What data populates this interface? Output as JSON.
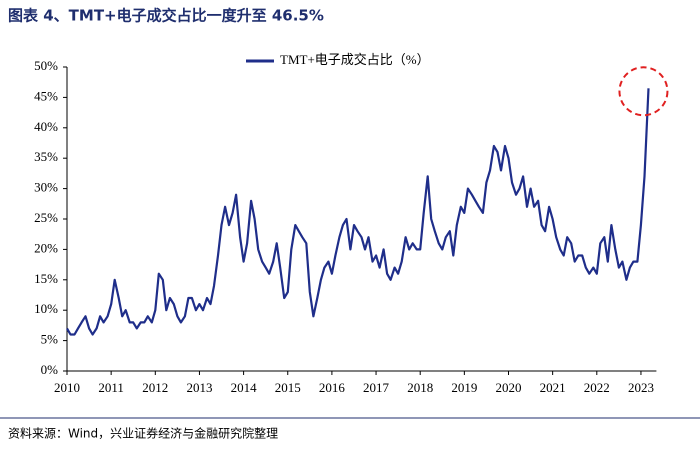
{
  "chart_data": {
    "type": "line",
    "title": "图表 4、TMT+电子成交占比一度升至 46.5%",
    "source": "资料来源：Wind，兴业证券经济与金融研究院整理",
    "xlim": [
      2010,
      2023.35
    ],
    "xticks": [
      2010,
      2011,
      2012,
      2013,
      2014,
      2015,
      2016,
      2017,
      2018,
      2019,
      2020,
      2021,
      2022,
      2023
    ],
    "ylim": [
      0,
      50
    ],
    "yticks": [
      {
        "value": 0,
        "label": "0%"
      },
      {
        "value": 5,
        "label": "5%"
      },
      {
        "value": 10,
        "label": "10%"
      },
      {
        "value": 15,
        "label": "15%"
      },
      {
        "value": 20,
        "label": "20%"
      },
      {
        "value": 25,
        "label": "25%"
      },
      {
        "value": 30,
        "label": "30%"
      },
      {
        "value": 35,
        "label": "35%"
      },
      {
        "value": 40,
        "label": "40%"
      },
      {
        "value": 45,
        "label": "45%"
      },
      {
        "value": 50,
        "label": "50%"
      }
    ],
    "legend": "top",
    "x": [
      2010,
      2010.08,
      2010.17,
      2010.25,
      2010.33,
      2010.42,
      2010.5,
      2010.58,
      2010.67,
      2010.75,
      2010.83,
      2010.92,
      2011,
      2011.08,
      2011.17,
      2011.25,
      2011.33,
      2011.42,
      2011.5,
      2011.58,
      2011.67,
      2011.75,
      2011.83,
      2011.92,
      2012,
      2012.08,
      2012.17,
      2012.25,
      2012.33,
      2012.42,
      2012.5,
      2012.58,
      2012.67,
      2012.75,
      2012.83,
      2012.92,
      2013,
      2013.08,
      2013.17,
      2013.25,
      2013.33,
      2013.42,
      2013.5,
      2013.58,
      2013.67,
      2013.75,
      2013.83,
      2013.92,
      2014,
      2014.08,
      2014.17,
      2014.25,
      2014.33,
      2014.42,
      2014.5,
      2014.58,
      2014.67,
      2014.75,
      2014.83,
      2014.92,
      2015,
      2015.08,
      2015.17,
      2015.25,
      2015.33,
      2015.42,
      2015.5,
      2015.58,
      2015.67,
      2015.75,
      2015.83,
      2015.92,
      2016,
      2016.08,
      2016.17,
      2016.25,
      2016.33,
      2016.42,
      2016.5,
      2016.58,
      2016.67,
      2016.75,
      2016.83,
      2016.92,
      2017,
      2017.08,
      2017.17,
      2017.25,
      2017.33,
      2017.42,
      2017.5,
      2017.58,
      2017.67,
      2017.75,
      2017.83,
      2017.92,
      2018,
      2018.08,
      2018.17,
      2018.25,
      2018.33,
      2018.42,
      2018.5,
      2018.58,
      2018.67,
      2018.75,
      2018.83,
      2018.92,
      2019,
      2019.08,
      2019.17,
      2019.25,
      2019.33,
      2019.42,
      2019.5,
      2019.58,
      2019.67,
      2019.75,
      2019.83,
      2019.92,
      2020,
      2020.08,
      2020.17,
      2020.25,
      2020.33,
      2020.42,
      2020.5,
      2020.58,
      2020.67,
      2020.75,
      2020.83,
      2020.92,
      2021,
      2021.08,
      2021.17,
      2021.25,
      2021.33,
      2021.42,
      2021.5,
      2021.58,
      2021.67,
      2021.75,
      2021.83,
      2021.92,
      2022,
      2022.08,
      2022.17,
      2022.25,
      2022.33,
      2022.42,
      2022.5,
      2022.58,
      2022.67,
      2022.75,
      2022.83,
      2022.92,
      2023,
      2023.08,
      2023.17
    ],
    "series": [
      {
        "name": "TMT+电子成交占比（%）",
        "color": "#1f2e8a",
        "values": [
          7,
          6,
          6,
          7,
          8,
          9,
          7,
          6,
          7,
          9,
          8,
          9,
          11,
          15,
          12,
          9,
          10,
          8,
          8,
          7,
          8,
          8,
          9,
          8,
          10,
          16,
          15,
          10,
          12,
          11,
          9,
          8,
          9,
          12,
          12,
          10,
          11,
          10,
          12,
          11,
          14,
          19,
          24,
          27,
          24,
          26,
          29,
          22,
          18,
          21,
          28,
          25,
          20,
          18,
          17,
          16,
          18,
          21,
          17,
          12,
          13,
          20,
          24,
          23,
          22,
          21,
          13,
          9,
          12,
          15,
          17,
          18,
          16,
          19,
          22,
          24,
          25,
          20,
          24,
          23,
          22,
          20,
          22,
          18,
          19,
          17,
          20,
          16,
          15,
          17,
          16,
          18,
          22,
          20,
          21,
          20,
          20,
          26,
          32,
          25,
          23,
          21,
          20,
          22,
          23,
          19,
          24,
          27,
          26,
          30,
          29,
          28,
          27,
          26,
          31,
          33,
          37,
          36,
          33,
          37,
          35,
          31,
          29,
          30,
          32,
          27,
          30,
          27,
          28,
          24,
          23,
          27,
          25,
          22,
          20,
          19,
          22,
          21,
          18,
          19,
          19,
          17,
          16,
          17,
          16,
          21,
          22,
          18,
          24,
          20,
          17,
          18,
          15,
          17,
          18,
          18,
          24,
          32,
          46.5
        ]
      }
    ]
  }
}
